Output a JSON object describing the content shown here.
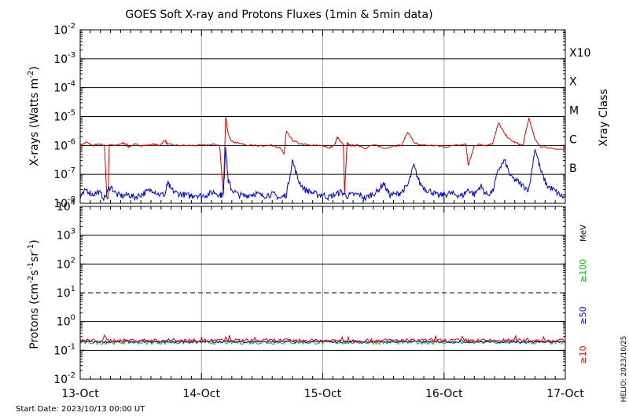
{
  "chart_data": [
    {
      "type": "line",
      "title": "GOES Soft X-ray and Protons Fluxes   (1min & 5min data)",
      "xlabel": "",
      "x_ticks": [
        "13-Oct",
        "14-Oct",
        "15-Oct",
        "16-Oct",
        "17-Oct"
      ],
      "x_range": [
        "2023-10-13 00:00",
        "2023-10-17 00:00"
      ],
      "ylabel": "X-rays (Watts m",
      "ylabel_exp": "-2",
      "ylabel_close": ")",
      "ylim": [
        1e-08,
        0.01
      ],
      "y_scale": "log",
      "y_ticks": [
        {
          "base": "10",
          "exp": "-2"
        },
        {
          "base": "10",
          "exp": "-3"
        },
        {
          "base": "10",
          "exp": "-4"
        },
        {
          "base": "10",
          "exp": "-5"
        },
        {
          "base": "10",
          "exp": "-6"
        },
        {
          "base": "10",
          "exp": "-7"
        },
        {
          "base": "10",
          "exp": "-8"
        }
      ],
      "right_axis_label": "Xray Class",
      "right_axis_ticks": [
        "X10",
        "X",
        "M",
        "C",
        "B"
      ],
      "grid": true,
      "series": [
        {
          "color": "#e00000",
          "x": [
            0,
            0.05,
            0.1,
            0.15,
            0.2,
            0.22,
            0.23,
            0.24,
            0.3,
            0.35,
            0.38,
            0.4,
            0.45,
            0.5,
            0.55,
            0.6,
            0.65,
            0.7,
            0.72,
            0.8,
            0.9,
            1.0,
            1.1,
            1.15,
            1.18,
            1.2,
            1.22,
            1.25,
            1.3,
            1.4,
            1.5,
            1.6,
            1.65,
            1.68,
            1.7,
            1.75,
            1.8,
            1.9,
            2.0,
            2.05,
            2.1,
            2.12,
            2.15,
            2.17,
            2.18,
            2.2,
            2.22,
            2.25,
            2.3,
            2.35,
            2.4,
            2.45,
            2.5,
            2.6,
            2.65,
            2.7,
            2.75,
            2.8,
            2.9,
            3.0,
            3.1,
            3.18,
            3.2,
            3.25,
            3.3,
            3.35,
            3.4,
            3.45,
            3.5,
            3.55,
            3.6,
            3.65,
            3.7,
            3.75,
            3.8,
            3.9,
            4.0
          ],
          "values": [
            1e-06,
            1.3e-06,
            1e-06,
            1.1e-06,
            1e-06,
            1.5e-08,
            1.5e-08,
            1.1e-06,
            1e-06,
            1.2e-06,
            1.1e-06,
            9e-07,
            1.1e-06,
            1e-06,
            1e-06,
            1.1e-06,
            1e-06,
            1.5e-06,
            1.1e-06,
            1e-06,
            1e-06,
            1e-06,
            1.1e-06,
            1e-06,
            2e-08,
            9.5e-06,
            2.5e-06,
            1.4e-06,
            1.2e-06,
            1e-06,
            1e-06,
            1e-06,
            8e-07,
            5e-07,
            3e-06,
            1.5e-06,
            1.2e-06,
            1e-06,
            1e-06,
            8e-07,
            1.1e-06,
            2e-06,
            1.3e-06,
            1.1e-06,
            2e-08,
            1.2e-06,
            1e-06,
            1e-06,
            1e-06,
            8e-07,
            1e-06,
            1e-06,
            8e-07,
            1e-06,
            1e-06,
            3e-06,
            1.3e-06,
            1e-06,
            1e-06,
            9e-07,
            1e-06,
            1.1e-06,
            2e-07,
            1e-06,
            1.1e-06,
            1e-06,
            1.2e-06,
            6e-06,
            2.5e-06,
            1.5e-06,
            1.2e-06,
            1e-06,
            9e-06,
            1.6e-06,
            9e-07,
            8e-07,
            7e-07
          ]
        },
        {
          "color": "#0000e0",
          "x": [
            0,
            0.05,
            0.1,
            0.15,
            0.2,
            0.25,
            0.3,
            0.35,
            0.4,
            0.45,
            0.5,
            0.55,
            0.6,
            0.65,
            0.7,
            0.72,
            0.75,
            0.8,
            0.85,
            0.9,
            0.95,
            1.0,
            1.05,
            1.1,
            1.15,
            1.18,
            1.2,
            1.22,
            1.25,
            1.3,
            1.35,
            1.4,
            1.45,
            1.5,
            1.55,
            1.6,
            1.65,
            1.7,
            1.75,
            1.8,
            1.85,
            1.9,
            1.95,
            2.0,
            2.05,
            2.1,
            2.15,
            2.2,
            2.25,
            2.3,
            2.35,
            2.4,
            2.45,
            2.5,
            2.55,
            2.6,
            2.65,
            2.7,
            2.75,
            2.8,
            2.85,
            2.9,
            2.95,
            3.0,
            3.05,
            3.1,
            3.15,
            3.2,
            3.25,
            3.3,
            3.35,
            3.4,
            3.45,
            3.5,
            3.55,
            3.6,
            3.65,
            3.7,
            3.75,
            3.8,
            3.85,
            3.9,
            3.95,
            4.0
          ],
          "values": [
            1.5e-08,
            3e-08,
            2e-08,
            2.5e-08,
            1.5e-08,
            4e-08,
            2e-08,
            1.8e-08,
            2e-08,
            1.6e-08,
            2e-08,
            2.5e-08,
            3e-08,
            2e-08,
            2e-08,
            5e-08,
            3e-08,
            2.2e-08,
            2e-08,
            1.8e-08,
            2e-08,
            1.8e-08,
            2e-08,
            2.5e-08,
            2e-08,
            2e-08,
            1e-06,
            6e-08,
            3e-08,
            2e-08,
            1.8e-08,
            2e-08,
            2.2e-08,
            1.8e-08,
            2e-08,
            2e-08,
            1.5e-08,
            2e-08,
            3e-07,
            6e-08,
            3e-08,
            2.5e-08,
            2e-08,
            2e-08,
            1.6e-08,
            2e-08,
            2.5e-08,
            1.8e-08,
            2e-08,
            2e-08,
            1.5e-08,
            2e-08,
            2.5e-08,
            5e-08,
            2e-08,
            2e-08,
            2.5e-08,
            4e-08,
            2e-07,
            5e-08,
            3e-08,
            2.5e-08,
            1.8e-08,
            2e-08,
            2.2e-08,
            2e-08,
            1.8e-08,
            3e-08,
            2e-08,
            4e-08,
            2e-08,
            2.5e-08,
            1.5e-07,
            3e-07,
            8e-08,
            6e-08,
            4e-08,
            3e-08,
            8e-07,
            1.2e-07,
            4e-08,
            3e-08,
            2e-08,
            1.5e-08
          ]
        }
      ]
    },
    {
      "type": "line",
      "xlabel": "",
      "ylabel": "Protons (cm",
      "ylabel_parts": [
        {
          "t": "Protons (cm"
        },
        {
          "t": "-2",
          "sup": true
        },
        {
          "t": "s"
        },
        {
          "t": "-1",
          "sup": true
        },
        {
          "t": "sr"
        },
        {
          "t": "-1",
          "sup": true
        },
        {
          "t": ")"
        }
      ],
      "ylim": [
        0.01,
        10000
      ],
      "y_scale": "log",
      "y_ticks": [
        {
          "base": "10",
          "exp": "4"
        },
        {
          "base": "10",
          "exp": "3"
        },
        {
          "base": "10",
          "exp": "2"
        },
        {
          "base": "10",
          "exp": "1"
        },
        {
          "base": "10",
          "exp": "0"
        },
        {
          "base": "10",
          "exp": "-1"
        },
        {
          "base": "10",
          "exp": "-2"
        }
      ],
      "threshold": 10,
      "right_unit": "MeV",
      "grid": true,
      "series": [
        {
          "name": "≥100",
          "color": "#00c000",
          "level": 0.19,
          "jitter": 0.05
        },
        {
          "name": "≥50",
          "color": "#0000e0",
          "level": 0.2,
          "jitter": 0.03
        },
        {
          "name": "≥10",
          "color": "#e00000",
          "level": 0.22,
          "jitter": 0.05
        }
      ]
    }
  ],
  "footer": {
    "start_date": "Start Date: 2023/10/13 00:00 UT",
    "credit": "HELIO: 2023/10/25"
  }
}
